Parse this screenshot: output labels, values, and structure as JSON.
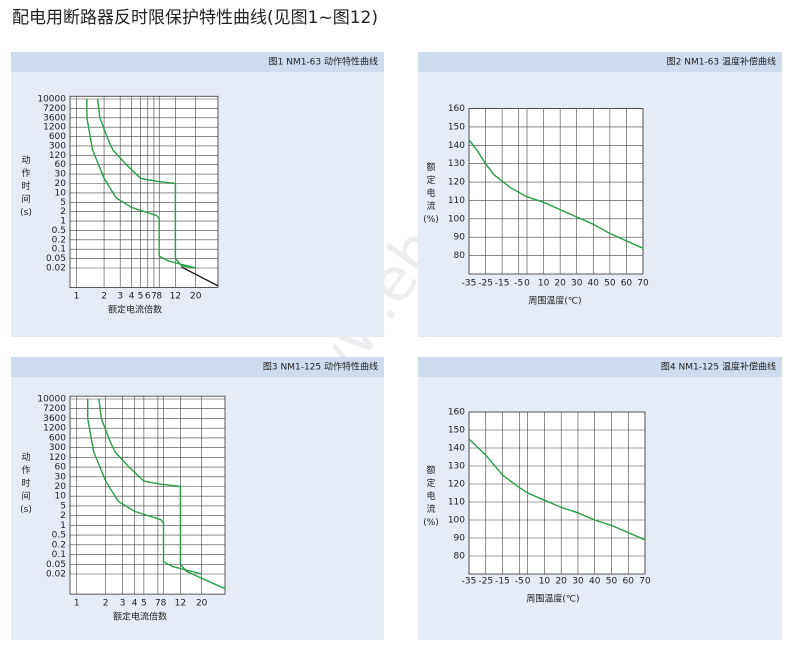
{
  "title": "配电用断路器反时限保护特性曲线(见图1~图12)",
  "watermark": "www.ehsy.com",
  "chart_data": [
    {
      "type": "trip",
      "title": "图1 NM1-63 动作特性曲线",
      "y_label": "动作时间(s)",
      "x_label": "额定电流倍数",
      "xscale": "log",
      "yscale": "log",
      "y_tick_spacing": "even",
      "grid": true,
      "xlim": [
        0.85,
        35
      ],
      "xticks": [
        1,
        2,
        3,
        4,
        5,
        6,
        7,
        8,
        12,
        20
      ],
      "ylim": [
        0.003,
        11000
      ],
      "yticks": [
        10000,
        7200,
        3600,
        1200,
        600,
        300,
        120,
        60,
        30,
        20,
        10,
        5,
        2,
        1,
        0.5,
        0.2,
        0.1,
        0.05,
        0.02
      ],
      "series": [
        {
          "color": "#2a9d47",
          "x": [
            1.3,
            1.3,
            1.5,
            2,
            2.7,
            4,
            7.5,
            8,
            8,
            10,
            20
          ],
          "values": [
            10000,
            3600,
            200,
            25,
            7,
            3,
            1.5,
            1.2,
            0.06,
            0.04,
            0.02
          ]
        },
        {
          "color": "#2a9d47",
          "x": [
            1.7,
            1.8,
            2.2,
            2.5,
            3.5,
            5,
            7.5,
            12,
            12,
            14,
            20
          ],
          "values": [
            10000,
            3600,
            500,
            200,
            60,
            25,
            22,
            20,
            0.05,
            0.025,
            0.02
          ]
        },
        {
          "color": "#222222",
          "x": [
            14,
            35
          ],
          "values": [
            0.022,
            0.0035
          ]
        }
      ]
    },
    {
      "type": "line",
      "title": "图2 NM1-63 温度补偿曲线",
      "y_label": "额定电流(%)",
      "x_label": "周围温度(℃)",
      "grid": true,
      "xlim": [
        -35,
        70
      ],
      "xticks": [
        -35,
        -25,
        -15,
        -5,
        0,
        10,
        20,
        30,
        40,
        50,
        60,
        70
      ],
      "ylim": [
        70,
        160
      ],
      "yticks": [
        160,
        150,
        140,
        130,
        120,
        110,
        100,
        90,
        80
      ],
      "series": [
        {
          "color": "#2a9d47",
          "x": [
            -35,
            -30,
            -25,
            -20,
            -10,
            0,
            10,
            20,
            30,
            40,
            50,
            60,
            70
          ],
          "values": [
            143,
            137,
            130,
            124,
            117,
            112,
            109,
            105,
            101,
            97,
            92,
            88,
            84
          ]
        }
      ]
    },
    {
      "type": "trip",
      "title": "图3 NM1-125 动作特性曲线",
      "y_label": "动作时间(s)",
      "x_label": "额定电流倍数",
      "xscale": "log",
      "yscale": "log",
      "y_tick_spacing": "even",
      "grid": true,
      "xlim": [
        0.85,
        35
      ],
      "xticks": [
        1,
        2,
        3,
        4,
        5,
        7,
        8,
        12,
        20
      ],
      "ylim": [
        0.003,
        11000
      ],
      "yticks": [
        10000,
        7200,
        3600,
        1200,
        600,
        300,
        120,
        60,
        30,
        20,
        10,
        5,
        2,
        1,
        0.5,
        0.2,
        0.1,
        0.05,
        0.02
      ],
      "series": [
        {
          "color": "#2a9d47",
          "x": [
            1.3,
            1.3,
            1.5,
            2,
            2.7,
            4,
            7.5,
            8,
            8,
            10,
            20
          ],
          "values": [
            10000,
            3600,
            200,
            25,
            7,
            3,
            1.5,
            1.2,
            0.06,
            0.04,
            0.02
          ]
        },
        {
          "color": "#2a9d47",
          "x": [
            1.7,
            1.8,
            2.2,
            2.5,
            3.5,
            5,
            7.5,
            12,
            12,
            14,
            35
          ],
          "values": [
            10000,
            3600,
            500,
            200,
            60,
            25,
            22,
            20,
            0.05,
            0.025,
            0.005
          ]
        }
      ]
    },
    {
      "type": "line",
      "title": "图4 NM1-125 温度补偿曲线",
      "y_label": "额定电流(%)",
      "x_label": "周围温度(℃)",
      "grid": true,
      "xlim": [
        -35,
        70
      ],
      "xticks": [
        -35,
        -25,
        -15,
        -5,
        0,
        10,
        20,
        30,
        40,
        50,
        60,
        70
      ],
      "ylim": [
        70,
        160
      ],
      "yticks": [
        160,
        150,
        140,
        130,
        120,
        110,
        100,
        90,
        80
      ],
      "series": [
        {
          "color": "#2a9d47",
          "x": [
            -35,
            -25,
            -15,
            -5,
            0,
            10,
            20,
            30,
            40,
            50,
            60,
            70
          ],
          "values": [
            145,
            136,
            125,
            118,
            115,
            111,
            107,
            104,
            100,
            97,
            93,
            89
          ]
        }
      ]
    }
  ]
}
